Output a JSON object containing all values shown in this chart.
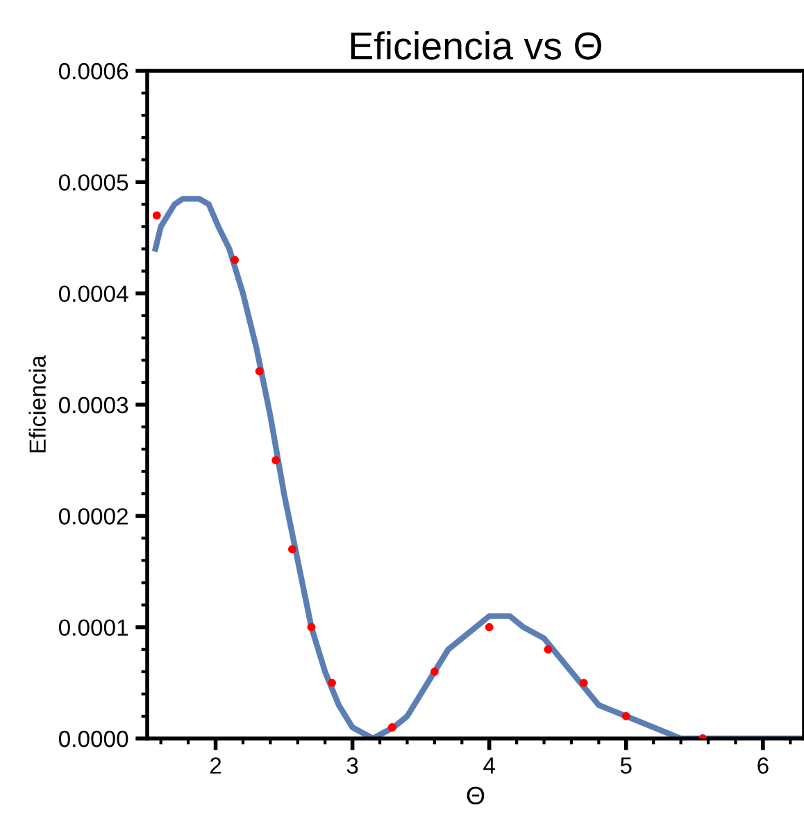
{
  "chart_data": {
    "type": "line",
    "title": "Eficiencia vs Θ",
    "xlabel": "Θ",
    "ylabel": "Eficiencia",
    "xlim": [
      1.5,
      6.3
    ],
    "xticks": [
      2,
      3,
      4,
      5,
      6
    ],
    "ylim": [
      0,
      0.0006
    ],
    "yticks": [
      {
        "value": 0,
        "label": "0.0000"
      },
      {
        "value": 0.0001,
        "label": "0.0001"
      },
      {
        "value": 0.0002,
        "label": "0.0002"
      },
      {
        "value": 0.0003,
        "label": "0.0003"
      },
      {
        "value": 0.0004,
        "label": "0.0004"
      },
      {
        "value": 0.0005,
        "label": "0.0005"
      },
      {
        "value": 0.0006,
        "label": "0.0006"
      }
    ],
    "grid": false,
    "legend": false,
    "series": [
      {
        "color": "#5b7fb5",
        "marker": "none",
        "line_style": "solid",
        "x": [
          1.56,
          1.6,
          1.65,
          1.7,
          1.76,
          1.82,
          1.88,
          1.95,
          2.02,
          2.1,
          2.2,
          2.3,
          2.4,
          2.5,
          2.6,
          2.7,
          2.8,
          2.9,
          3.0,
          3.15,
          3.3,
          3.4,
          3.5,
          3.6,
          3.7,
          3.8,
          3.9,
          4.0,
          4.07,
          4.15,
          4.25,
          4.4,
          4.6,
          4.8,
          5.0,
          5.2,
          5.4,
          5.6,
          6.0,
          6.3
        ],
        "values": [
          0.00044,
          0.00046,
          0.00047,
          0.00048,
          0.000485,
          0.000485,
          0.000485,
          0.00048,
          0.00046,
          0.00044,
          0.0004,
          0.00035,
          0.00029,
          0.00022,
          0.00016,
          0.0001,
          6e-05,
          3e-05,
          1e-05,
          0,
          1e-05,
          2e-05,
          4e-05,
          6e-05,
          8e-05,
          9e-05,
          0.0001,
          0.00011,
          0.00011,
          0.00011,
          0.0001,
          9e-05,
          6e-05,
          3e-05,
          2e-05,
          1e-05,
          0,
          0,
          0,
          0
        ]
      },
      {
        "type": "scatter",
        "color": "#ff0000",
        "marker": "circle",
        "x": [
          1.57,
          2.14,
          2.32,
          2.44,
          2.56,
          2.7,
          2.85,
          3.29,
          3.6,
          4.0,
          4.43,
          4.69,
          5.0,
          5.56
        ],
        "values": [
          0.00047,
          0.00043,
          0.00033,
          0.00025,
          0.00017,
          0.0001,
          5e-05,
          1e-05,
          6e-05,
          0.0001,
          8e-05,
          5e-05,
          2e-05,
          0
        ]
      }
    ]
  }
}
